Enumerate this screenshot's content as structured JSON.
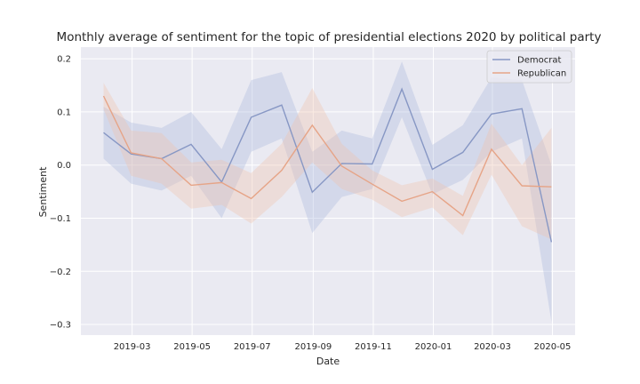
{
  "chart_data": {
    "type": "line",
    "title": "Monthly average of sentiment for the topic of presidential elections 2020 by political party",
    "xlabel": "Date",
    "ylabel": "Sentiment",
    "xlim": [
      "2019-01-08",
      "2020-05-24"
    ],
    "ylim": [
      -0.32,
      0.222
    ],
    "x_ticks": [
      "2019-03",
      "2019-05",
      "2019-07",
      "2019-09",
      "2019-11",
      "2020-01",
      "2020-03",
      "2020-05"
    ],
    "x_tick_dates": [
      "2019-03-01",
      "2019-05-01",
      "2019-07-01",
      "2019-09-01",
      "2019-11-01",
      "2020-01-01",
      "2020-03-01",
      "2020-05-01"
    ],
    "y_ticks": [
      0.2,
      0.1,
      0.0,
      -0.1,
      -0.2,
      -0.3
    ],
    "y_tick_labels": [
      "0.2",
      "0.1",
      "0.0",
      "−0.1",
      "−0.2",
      "−0.3"
    ],
    "grid": true,
    "legend_position": "top-right",
    "x": [
      "2019-01-31",
      "2019-02-28",
      "2019-03-31",
      "2019-04-30",
      "2019-05-31",
      "2019-06-30",
      "2019-07-31",
      "2019-08-31",
      "2019-09-30",
      "2019-10-31",
      "2019-11-30",
      "2019-12-31",
      "2020-01-31",
      "2020-02-29",
      "2020-03-31",
      "2020-04-30"
    ],
    "series": [
      {
        "name": "Democrat",
        "color": "#8797c4",
        "band_color": "#aab6dd",
        "values": [
          0.061,
          0.021,
          0.012,
          0.039,
          -0.032,
          0.09,
          0.113,
          -0.051,
          0.003,
          0.002,
          0.143,
          -0.008,
          0.024,
          0.096,
          0.106,
          -0.145
        ],
        "ci_upper": [
          0.11,
          0.08,
          0.07,
          0.1,
          0.03,
          0.16,
          0.175,
          0.025,
          0.065,
          0.05,
          0.195,
          0.038,
          0.075,
          0.165,
          0.16,
          0.0
        ],
        "ci_lower": [
          0.012,
          -0.035,
          -0.048,
          -0.02,
          -0.1,
          0.025,
          0.05,
          -0.128,
          -0.06,
          -0.045,
          0.09,
          -0.055,
          -0.028,
          0.025,
          0.05,
          -0.295
        ]
      },
      {
        "name": "Republican",
        "color": "#e6a487",
        "band_color": "#f0c4ad",
        "values": [
          0.13,
          0.023,
          0.012,
          -0.038,
          -0.033,
          -0.063,
          -0.01,
          0.075,
          -0.002,
          -0.036,
          -0.068,
          -0.05,
          -0.095,
          0.03,
          -0.039,
          -0.041
        ],
        "ci_upper": [
          0.155,
          0.065,
          0.06,
          0.005,
          0.01,
          -0.015,
          0.04,
          0.145,
          0.04,
          -0.01,
          -0.038,
          -0.025,
          -0.058,
          0.078,
          0.0,
          0.07
        ],
        "ci_lower": [
          0.105,
          -0.02,
          -0.035,
          -0.082,
          -0.075,
          -0.11,
          -0.06,
          0.005,
          -0.045,
          -0.065,
          -0.098,
          -0.08,
          -0.132,
          -0.018,
          -0.115,
          -0.14
        ]
      }
    ]
  }
}
